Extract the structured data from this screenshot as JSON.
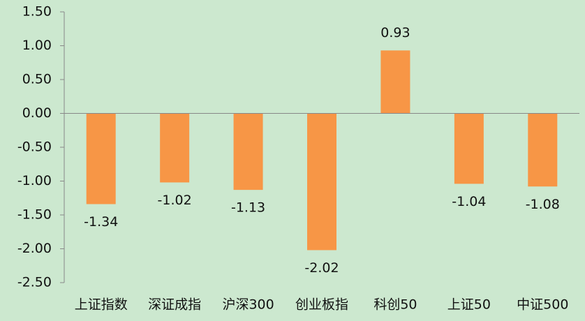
{
  "chart_data": {
    "type": "bar",
    "categories": [
      "上证指数",
      "深证成指",
      "沪深300",
      "创业板指",
      "科创50",
      "上证50",
      "中证500"
    ],
    "values": [
      -1.34,
      -1.02,
      -1.13,
      -2.02,
      0.93,
      -1.04,
      -1.08
    ],
    "color": "#f79646",
    "ylim": [
      -2.5,
      1.5
    ],
    "yticks": [
      {
        "value": -2.5,
        "label": "-2.50"
      },
      {
        "value": -2,
        "label": "-2.00"
      },
      {
        "value": -1.5,
        "label": "-1.50"
      },
      {
        "value": -1,
        "label": "-1.00"
      },
      {
        "value": -0.5,
        "label": "-0.50"
      },
      {
        "value": 0,
        "label": "0.00"
      },
      {
        "value": 0.5,
        "label": "0.50"
      },
      {
        "value": 1,
        "label": "1.00"
      },
      {
        "value": 1.5,
        "label": "1.50"
      }
    ],
    "grid": false
  }
}
